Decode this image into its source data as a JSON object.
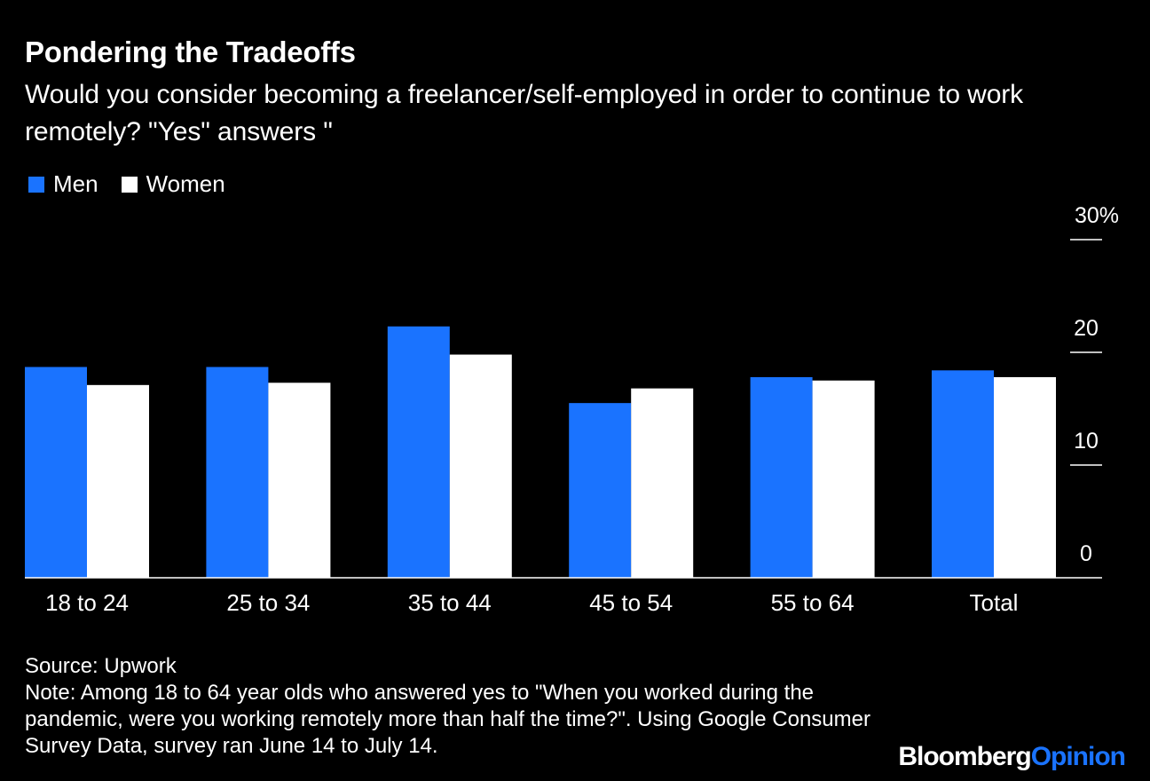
{
  "title": "Pondering the Tradeoffs",
  "subtitle": "Would you consider becoming a freelancer/self-employed in order to continue to work remotely? \"Yes\" answers \"",
  "legend": [
    {
      "label": "Men",
      "color": "#1a73ff"
    },
    {
      "label": "Women",
      "color": "#ffffff"
    }
  ],
  "chart_data": {
    "type": "bar",
    "categories": [
      "18 to 24",
      "25 to 34",
      "35 to 44",
      "45 to 54",
      "55 to 64",
      "Total"
    ],
    "series": [
      {
        "name": "Men",
        "color": "#1a73ff",
        "values": [
          18.7,
          18.7,
          22.3,
          15.5,
          17.8,
          18.4
        ]
      },
      {
        "name": "Women",
        "color": "#ffffff",
        "values": [
          17.1,
          17.3,
          19.8,
          16.8,
          17.5,
          17.8
        ]
      }
    ],
    "ylim": [
      0,
      30
    ],
    "yticks": [
      0,
      10,
      20,
      30
    ],
    "ytick_labels": [
      "0",
      "10",
      "20",
      "30%"
    ],
    "y_axis_side": "right",
    "grid": false
  },
  "footer": {
    "source": "Source: Upwork",
    "note": "Note: Among 18 to 64 year olds who answered yes to \"When you worked during the pandemic, were you working remotely more than half the time?\". Using Google Consumer Survey Data, survey ran June 14 to July 14."
  },
  "brand": {
    "part1": "Bloomberg",
    "part2": "Opinion"
  }
}
